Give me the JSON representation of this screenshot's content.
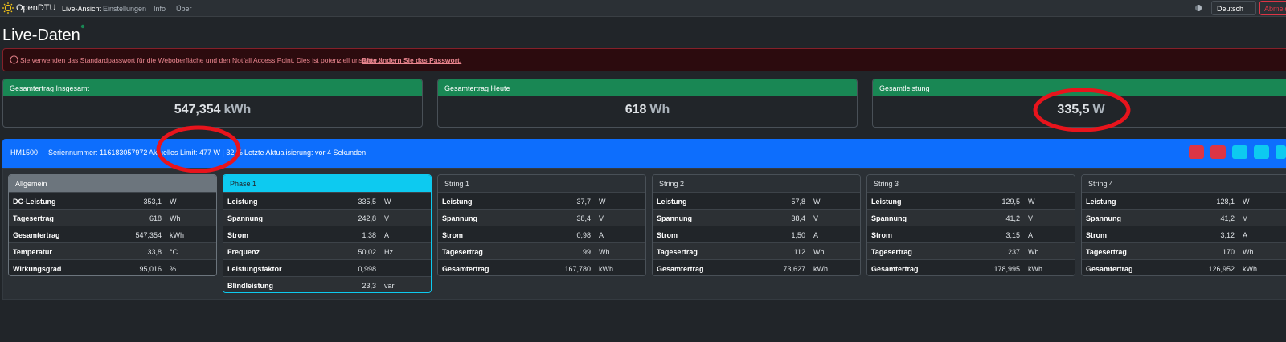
{
  "navbar": {
    "brand": "OpenDTU",
    "links": [
      "Live-Ansicht",
      "Einstellungen",
      "Info",
      "Über"
    ],
    "language": "Deutsch",
    "logout": "Abmelden"
  },
  "page_title": "Live-Daten",
  "alert": {
    "text": "Sie verwenden das Standardpasswort für die Weboberfläche und den Notfall Access Point. Dies ist potenziell unsicher.",
    "link": "Bitte ändern Sie das Passwort."
  },
  "summary": [
    {
      "title": "Gesamtertrag Insgesamt",
      "value": "547,354",
      "unit": "kWh"
    },
    {
      "title": "Gesamtertrag Heute",
      "value": "618",
      "unit": "Wh"
    },
    {
      "title": "Gesamtleistung",
      "value": "335,5",
      "unit": "W"
    }
  ],
  "inverter": {
    "name": "HM1500",
    "serial": "Seriennummer: 116183057972",
    "limit": "Aktuelles Limit: 477 W | 32 %",
    "updated": "Letzte Aktualisierung: vor 4 Sekunden"
  },
  "tables": [
    {
      "title": "Allgemein",
      "rows": [
        {
          "label": "DC-Leistung",
          "value": "353,1",
          "unit": "W"
        },
        {
          "label": "Tagesertrag",
          "value": "618",
          "unit": "Wh"
        },
        {
          "label": "Gesamtertrag",
          "value": "547,354",
          "unit": "kWh"
        },
        {
          "label": "Temperatur",
          "value": "33,8",
          "unit": "°C"
        },
        {
          "label": "Wirkungsgrad",
          "value": "95,016",
          "unit": "%"
        }
      ]
    },
    {
      "title": "Phase 1",
      "rows": [
        {
          "label": "Leistung",
          "value": "335,5",
          "unit": "W"
        },
        {
          "label": "Spannung",
          "value": "242,8",
          "unit": "V"
        },
        {
          "label": "Strom",
          "value": "1,38",
          "unit": "A"
        },
        {
          "label": "Frequenz",
          "value": "50,02",
          "unit": "Hz"
        },
        {
          "label": "Leistungsfaktor",
          "value": "0,998"
        },
        {
          "label": "Blindleistung",
          "value": "23,3",
          "unit": "var"
        }
      ]
    },
    {
      "title": "String 1",
      "rows": [
        {
          "label": "Leistung",
          "value": "37,7",
          "unit": "W"
        },
        {
          "label": "Spannung",
          "value": "38,4",
          "unit": "V"
        },
        {
          "label": "Strom",
          "value": "0,98",
          "unit": "A"
        },
        {
          "label": "Tagesertrag",
          "value": "99",
          "unit": "Wh"
        },
        {
          "label": "Gesamtertrag",
          "value": "167,780",
          "unit": "kWh"
        }
      ]
    },
    {
      "title": "String 2",
      "rows": [
        {
          "label": "Leistung",
          "value": "57,8",
          "unit": "W"
        },
        {
          "label": "Spannung",
          "value": "38,4",
          "unit": "V"
        },
        {
          "label": "Strom",
          "value": "1,50",
          "unit": "A"
        },
        {
          "label": "Tagesertrag",
          "value": "112",
          "unit": "Wh"
        },
        {
          "label": "Gesamtertrag",
          "value": "73,627",
          "unit": "kWh"
        }
      ]
    },
    {
      "title": "String 3",
      "rows": [
        {
          "label": "Leistung",
          "value": "129,5",
          "unit": "W"
        },
        {
          "label": "Spannung",
          "value": "41,2",
          "unit": "V"
        },
        {
          "label": "Strom",
          "value": "3,15",
          "unit": "A"
        },
        {
          "label": "Tagesertrag",
          "value": "237",
          "unit": "Wh"
        },
        {
          "label": "Gesamtertrag",
          "value": "178,995",
          "unit": "kWh"
        }
      ]
    },
    {
      "title": "String 4",
      "rows": [
        {
          "label": "Leistung",
          "value": "128,1",
          "unit": "W"
        },
        {
          "label": "Spannung",
          "value": "41,2",
          "unit": "V"
        },
        {
          "label": "Strom",
          "value": "3,12",
          "unit": "A"
        },
        {
          "label": "Tagesertrag",
          "value": "170",
          "unit": "Wh"
        },
        {
          "label": "Gesamtertrag",
          "value": "126,952",
          "unit": "kWh"
        }
      ]
    }
  ]
}
